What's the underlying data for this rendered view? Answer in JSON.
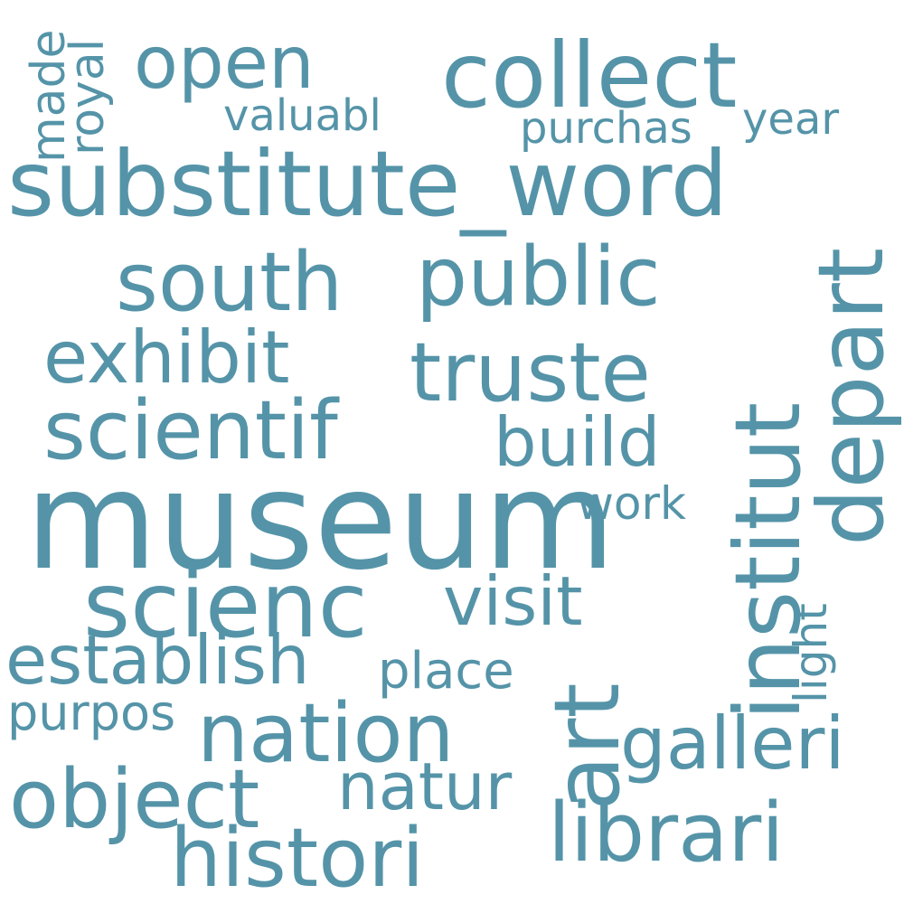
{
  "word_cloud": {
    "color": "#5594A8",
    "background": "#ffffff",
    "words": {
      "open": "open",
      "collect": "collect",
      "valuabl": "valuabl",
      "purchas": "purchas",
      "year": "year",
      "made": "made",
      "royal": "royal",
      "substitute_word": "substitute_word",
      "south": "south",
      "public": "public",
      "exhibit": "exhibit",
      "truste": "truste",
      "scientif": "scientif",
      "build": "build",
      "museum": "museum",
      "work": "work",
      "scienc": "scienc",
      "visit": "visit",
      "establish": "establish",
      "place": "place",
      "purpos": "purpos",
      "nation": "nation",
      "galleri": "galleri",
      "natur": "natur",
      "object": "object",
      "librari": "librari",
      "histori": "histori",
      "art": "art",
      "institut": "institut",
      "depart": "depart",
      "light": "light"
    }
  }
}
